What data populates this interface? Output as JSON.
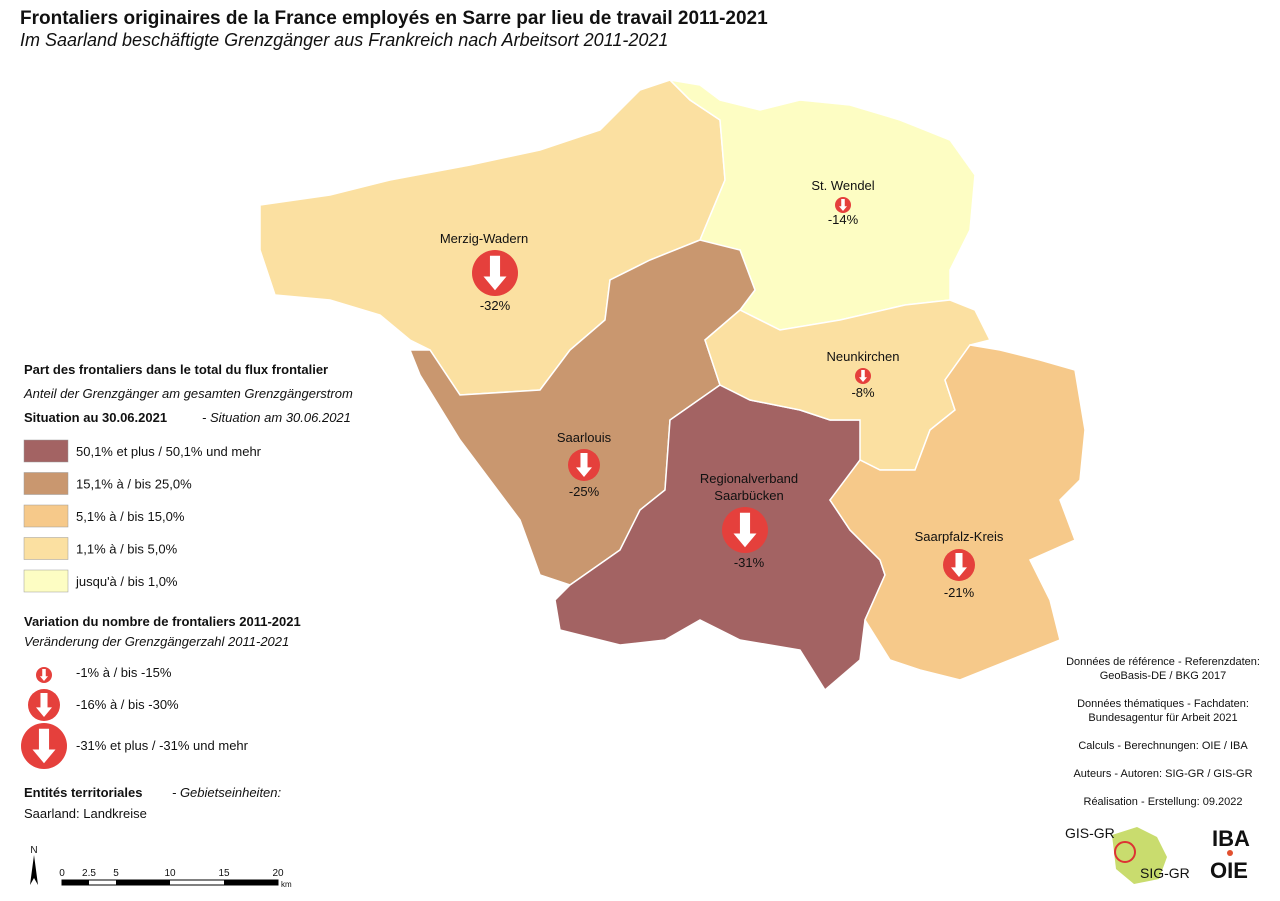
{
  "header": {
    "title": "Frontaliers originaires de la France employés en Sarre par lieu de travail 2011-2021",
    "subtitle": "Im Saarland beschäftigte Grenzgänger aus Frankreich nach Arbeitsort 2011-2021"
  },
  "regions": [
    {
      "name": [
        "Merzig-Wadern"
      ],
      "change": "-32%",
      "color": "#fbe0a1"
    },
    {
      "name": [
        "St. Wendel"
      ],
      "change": "-14%",
      "color": "#fdfdc3"
    },
    {
      "name": [
        "Saarlouis"
      ],
      "change": "-25%",
      "color": "#c9976f"
    },
    {
      "name": [
        "Regionalverband",
        "Saarbücken"
      ],
      "change": "-31%",
      "color": "#a36363"
    },
    {
      "name": [
        "Neunkirchen"
      ],
      "change": "-8%",
      "color": "#fbe0a1"
    },
    {
      "name": [
        "Saarpfalz-Kreis"
      ],
      "change": "-21%",
      "color": "#f6c98a"
    }
  ],
  "legend": {
    "title": "Part des frontaliers dans le total du flux frontalier",
    "subtitle": "Anteil der Grenzgänger am gesamten Grenzgängerstrom",
    "situation": "Situation au 30.06.2021",
    "situation_de": "- Situation am 30.06.2021",
    "classes": [
      {
        "label": "50,1% et plus / 50,1% und mehr",
        "color": "#a36363"
      },
      {
        "label": "15,1% à / bis 25,0%",
        "color": "#c9976f"
      },
      {
        "label": "5,1% à / bis 15,0%",
        "color": "#f6c98a"
      },
      {
        "label": "1,1% à / bis 5,0%",
        "color": "#fbe0a1"
      },
      {
        "label": "jusqu'à / bis 1,0%",
        "color": "#fdfdc3"
      }
    ],
    "variation_title": "Variation du nombre de frontaliers 2011-2021",
    "variation_subtitle": "Veränderung der Grenzgängerzahl 2011-2021",
    "variation_classes": [
      "-1% à / bis -15%",
      "-16% à / bis -30%",
      "-31% et plus / -31% und mehr"
    ],
    "entities_title": "Entités territoriales",
    "entities_subtitle": "- Gebietseinheiten:",
    "entities_value": "Saarland: Landkreise"
  },
  "credits": [
    "Données de référence - Referenzdaten:",
    "GeoBasis-DE / BKG 2017",
    "Données thématiques - Fachdaten:",
    "Bundesagentur für Arbeit 2021",
    "Calculs - Berechnungen: OIE / IBA",
    "Auteurs - Autoren: SIG-GR / GIS-GR",
    "Réalisation - Erstellung: 09.2022"
  ],
  "scale": {
    "north": "N",
    "ticks": [
      "0",
      "2.5",
      "5",
      "10",
      "15",
      "20"
    ],
    "unit": "km"
  },
  "logos": {
    "gis": "GIS-GR",
    "sig": "SIG-GR",
    "iba": "IBA",
    "oie": "OIE"
  }
}
